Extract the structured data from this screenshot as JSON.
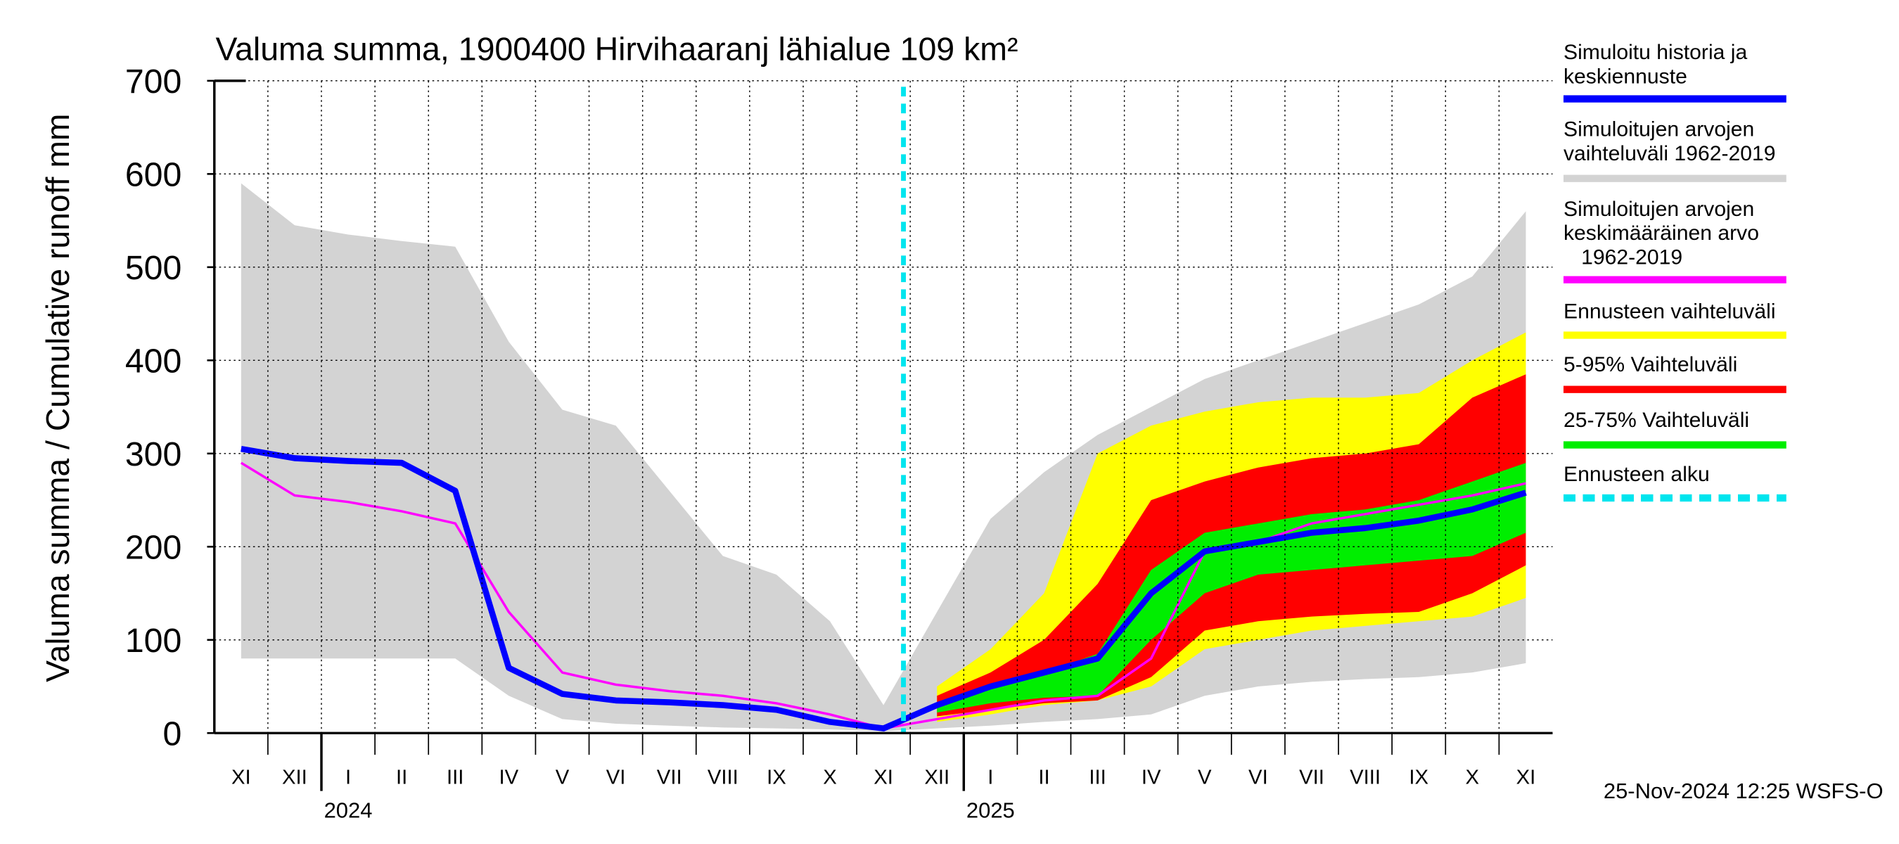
{
  "chart_data": {
    "type": "band-line",
    "title": "Valuma summa, 1900400 Hirvihaaranj lähialue 109 km²",
    "y_label": "Valuma summa / Cumulative runoff    mm",
    "footer": "25-Nov-2024 12:25 WSFS-O",
    "categories": [
      "XI",
      "XII",
      "I",
      "II",
      "III",
      "IV",
      "V",
      "VI",
      "VII",
      "VIII",
      "IX",
      "X",
      "XI",
      "XII",
      "I",
      "II",
      "III",
      "IV",
      "V",
      "VI",
      "VII",
      "VIII",
      "IX",
      "X",
      "XI"
    ],
    "x_group_labels": [
      "2024",
      "2025"
    ],
    "ylim": [
      0,
      700
    ],
    "yticks": [
      0,
      100,
      200,
      300,
      400,
      500,
      600,
      700
    ],
    "grid": true,
    "series": [
      {
        "name": "Simuloitu historia ja\nkeskiennuste",
        "kind": "line",
        "color": "#0000ff",
        "values": [
          305,
          295,
          292,
          290,
          260,
          70,
          42,
          35,
          33,
          30,
          25,
          12,
          5,
          30,
          50,
          65,
          80,
          150,
          195,
          205,
          215,
          220,
          228,
          240,
          258
        ]
      },
      {
        "name": "Simuloitujen arvojen\nvaihteluväli 1962-2019",
        "kind": "band",
        "color": "#d3d3d3",
        "high": [
          590,
          545,
          535,
          528,
          522,
          420,
          347,
          330,
          260,
          190,
          170,
          120,
          30,
          130,
          230,
          280,
          320,
          350,
          380,
          400,
          420,
          440,
          460,
          490,
          560
        ],
        "low": [
          80,
          80,
          80,
          80,
          80,
          40,
          15,
          10,
          8,
          6,
          5,
          4,
          2,
          5,
          8,
          12,
          15,
          20,
          40,
          50,
          55,
          58,
          60,
          65,
          75
        ]
      },
      {
        "name": "Simuloitujen arvojen\nkeskimääräinen arvo\n   1962-2019",
        "kind": "line",
        "color": "#ff00ff",
        "values": [
          290,
          255,
          248,
          238,
          225,
          130,
          65,
          52,
          45,
          40,
          32,
          20,
          5,
          15,
          25,
          35,
          40,
          80,
          195,
          205,
          225,
          235,
          245,
          255,
          268
        ]
      },
      {
        "name": "Ennusteen vaihteluväli",
        "kind": "band",
        "color": "#ffff00",
        "high": [
          null,
          null,
          null,
          null,
          null,
          null,
          null,
          null,
          null,
          null,
          null,
          null,
          null,
          50,
          90,
          150,
          300,
          330,
          345,
          355,
          360,
          360,
          365,
          400,
          430
        ],
        "low": [
          null,
          null,
          null,
          null,
          null,
          null,
          null,
          null,
          null,
          null,
          null,
          null,
          null,
          12,
          20,
          30,
          35,
          50,
          90,
          100,
          110,
          115,
          120,
          125,
          145
        ]
      },
      {
        "name": "5-95% Vaihteluväli",
        "kind": "band",
        "color": "#ff0000",
        "high": [
          null,
          null,
          null,
          null,
          null,
          null,
          null,
          null,
          null,
          null,
          null,
          null,
          null,
          40,
          65,
          100,
          160,
          250,
          270,
          285,
          295,
          300,
          310,
          360,
          385
        ],
        "low": [
          null,
          null,
          null,
          null,
          null,
          null,
          null,
          null,
          null,
          null,
          null,
          null,
          null,
          18,
          25,
          32,
          35,
          60,
          110,
          120,
          125,
          128,
          130,
          150,
          180
        ]
      },
      {
        "name": "25-75% Vaihteluväli",
        "kind": "band",
        "color": "#00ee00",
        "high": [
          null,
          null,
          null,
          null,
          null,
          null,
          null,
          null,
          null,
          null,
          null,
          null,
          null,
          32,
          50,
          65,
          85,
          175,
          215,
          225,
          235,
          240,
          250,
          270,
          290
        ],
        "low": [
          null,
          null,
          null,
          null,
          null,
          null,
          null,
          null,
          null,
          null,
          null,
          null,
          null,
          22,
          32,
          38,
          40,
          100,
          150,
          170,
          175,
          180,
          185,
          190,
          215
        ]
      }
    ],
    "forecast_start": {
      "label": "Ennusteen alku",
      "color": "#00e5ee"
    }
  }
}
